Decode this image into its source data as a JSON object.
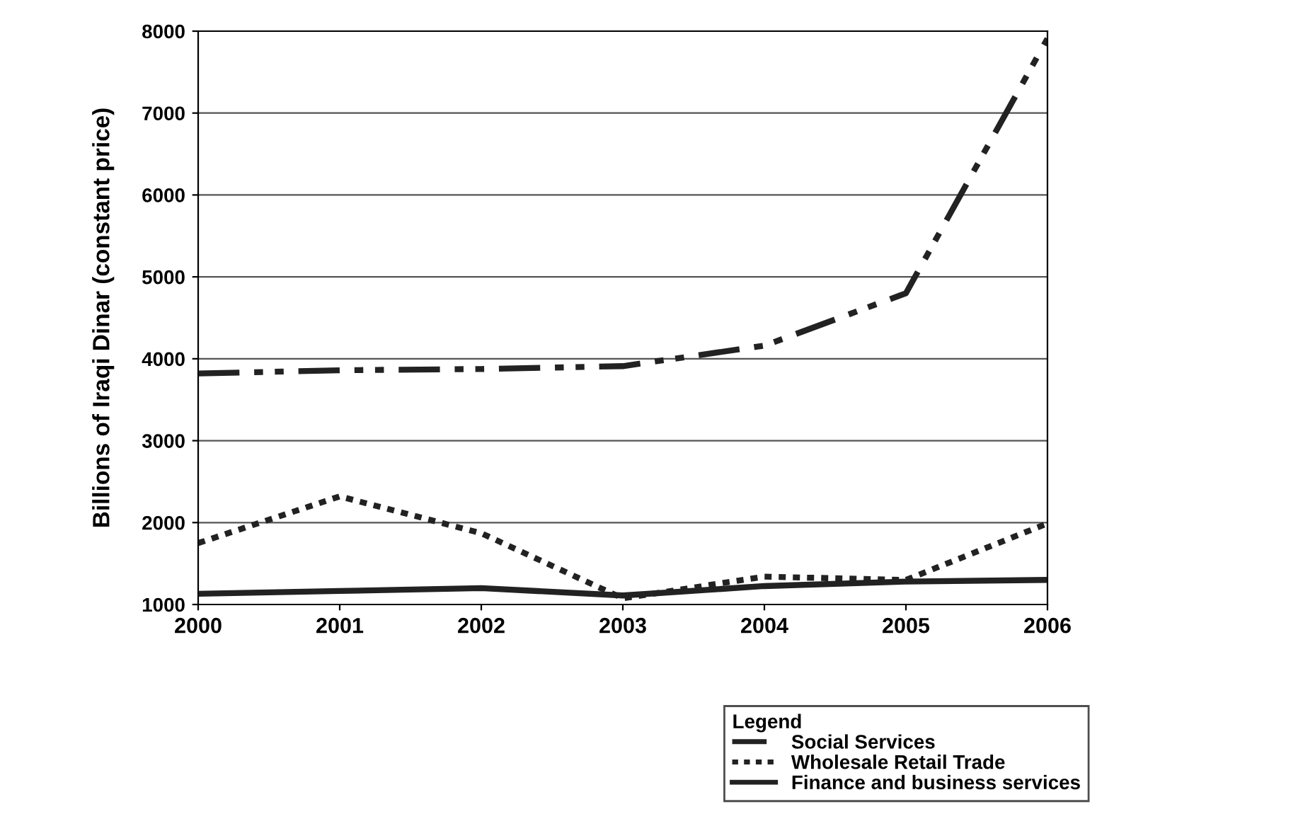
{
  "chart_data": {
    "type": "line",
    "ylabel": "Billions of Iraqi Dinar (constant price)",
    "legend_title": "Legend",
    "categories": [
      "2000",
      "2001",
      "2002",
      "2003",
      "2004",
      "2005",
      "2006"
    ],
    "series": [
      {
        "name": "Social Services",
        "color": "#222222",
        "line_style": "dashed",
        "values": [
          3820,
          3860,
          3875,
          3910,
          4160,
          4800,
          7910
        ]
      },
      {
        "name": "Wholesale Retail Trade",
        "color": "#222222",
        "line_style": "dotted",
        "values": [
          1750,
          2320,
          1870,
          1075,
          1340,
          1300,
          1990
        ]
      },
      {
        "name": "Finance and business services",
        "color": "#222222",
        "line_style": "solid",
        "values": [
          1130,
          1165,
          1200,
          1110,
          1225,
          1280,
          1300
        ]
      }
    ],
    "ylim": [
      1000,
      8000
    ],
    "yticks": [
      1000,
      2000,
      3000,
      4000,
      5000,
      6000,
      7000,
      8000
    ],
    "grid": "y",
    "legend": "bottom right",
    "marker": "none"
  }
}
